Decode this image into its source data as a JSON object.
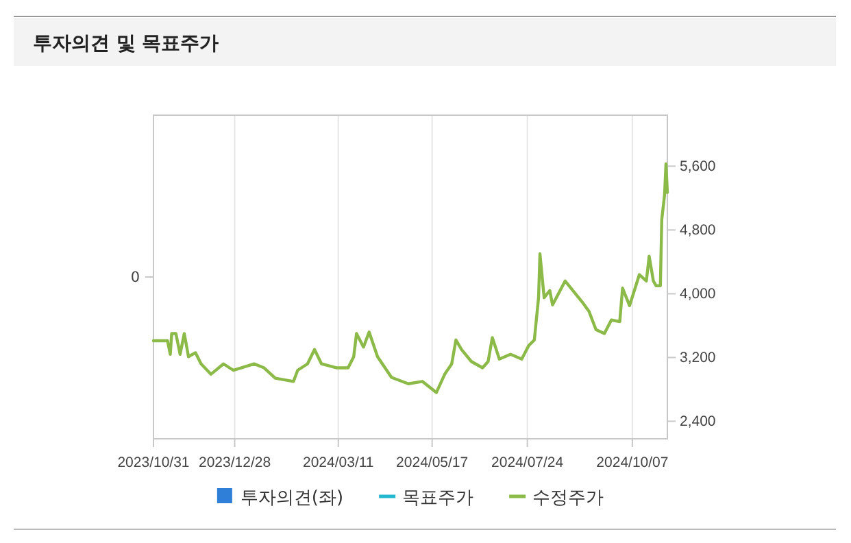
{
  "chart_data": {
    "type": "line",
    "title": "투자의견 및 목표주가",
    "annotations": [
      "0"
    ],
    "xlim": [
      "2023-10-31",
      "2024-11-01"
    ],
    "xticks": [
      {
        "value": "2023-10-31",
        "label": "2023/10/31"
      },
      {
        "value": "2023-12-28",
        "label": "2023/12/28"
      },
      {
        "value": "2024-03-11",
        "label": "2024/03/11"
      },
      {
        "value": "2024-05-17",
        "label": "2024/05/17"
      },
      {
        "value": "2024-07-24",
        "label": "2024/07/24"
      },
      {
        "value": "2024-10-07",
        "label": "2024/10/07"
      }
    ],
    "y2lim": [
      2180,
      6240
    ],
    "y2ticks": [
      {
        "value": 2400,
        "label": "2,400"
      },
      {
        "value": 3200,
        "label": "3,200"
      },
      {
        "value": 4000,
        "label": "4,000"
      },
      {
        "value": 4800,
        "label": "4,800"
      },
      {
        "value": 5600,
        "label": "5,600"
      }
    ],
    "grid": "x",
    "legend": "bottom",
    "series": [
      {
        "name": "투자의견(좌)",
        "type": "bar",
        "color": "#2f7ed8"
      },
      {
        "name": "목표주가",
        "color": "#24b8d0"
      },
      {
        "name": "수정주가",
        "axis": "y2",
        "color": "#8cba48",
        "x": [
          "2023-10-31",
          "2023-11-10",
          "2023-11-12",
          "2023-11-13",
          "2023-11-16",
          "2023-11-19",
          "2023-11-22",
          "2023-11-25",
          "2023-11-30",
          "2023-12-04",
          "2023-12-11",
          "2023-12-20",
          "2023-12-27",
          "2024-01-11",
          "2024-01-18",
          "2024-01-26",
          "2024-02-08",
          "2024-02-11",
          "2024-02-18",
          "2024-02-23",
          "2024-02-28",
          "2024-03-10",
          "2024-03-18",
          "2024-03-22",
          "2024-03-24",
          "2024-03-29",
          "2024-04-02",
          "2024-04-08",
          "2024-04-18",
          "2024-04-30",
          "2024-05-10",
          "2024-05-20",
          "2024-05-26",
          "2024-05-31",
          "2024-06-03",
          "2024-06-07",
          "2024-06-14",
          "2024-06-22",
          "2024-06-26",
          "2024-06-29",
          "2024-07-04",
          "2024-07-12",
          "2024-07-20",
          "2024-07-25",
          "2024-07-29",
          "2024-08-01",
          "2024-08-02",
          "2024-08-05",
          "2024-08-09",
          "2024-08-11",
          "2024-08-20",
          "2024-09-01",
          "2024-09-06",
          "2024-09-11",
          "2024-09-17",
          "2024-09-22",
          "2024-09-28",
          "2024-09-30",
          "2024-10-05",
          "2024-10-12",
          "2024-10-17",
          "2024-10-19",
          "2024-10-22",
          "2024-10-24",
          "2024-10-27",
          "2024-10-28",
          "2024-10-30",
          "2024-10-31",
          "2024-11-01"
        ],
        "values": [
          3410,
          3410,
          3240,
          3500,
          3500,
          3240,
          3500,
          3210,
          3260,
          3120,
          2990,
          3120,
          3040,
          3120,
          3070,
          2940,
          2900,
          3040,
          3120,
          3300,
          3120,
          3070,
          3070,
          3210,
          3500,
          3330,
          3520,
          3210,
          2950,
          2870,
          2900,
          2760,
          2990,
          3120,
          3420,
          3300,
          3150,
          3070,
          3150,
          3450,
          3180,
          3240,
          3180,
          3350,
          3420,
          3950,
          4500,
          3950,
          4040,
          3860,
          4160,
          3900,
          3780,
          3550,
          3500,
          3670,
          3650,
          4070,
          3850,
          4240,
          4160,
          4470,
          4160,
          4100,
          4100,
          4930,
          5240,
          5630,
          5270
        ]
      }
    ]
  }
}
